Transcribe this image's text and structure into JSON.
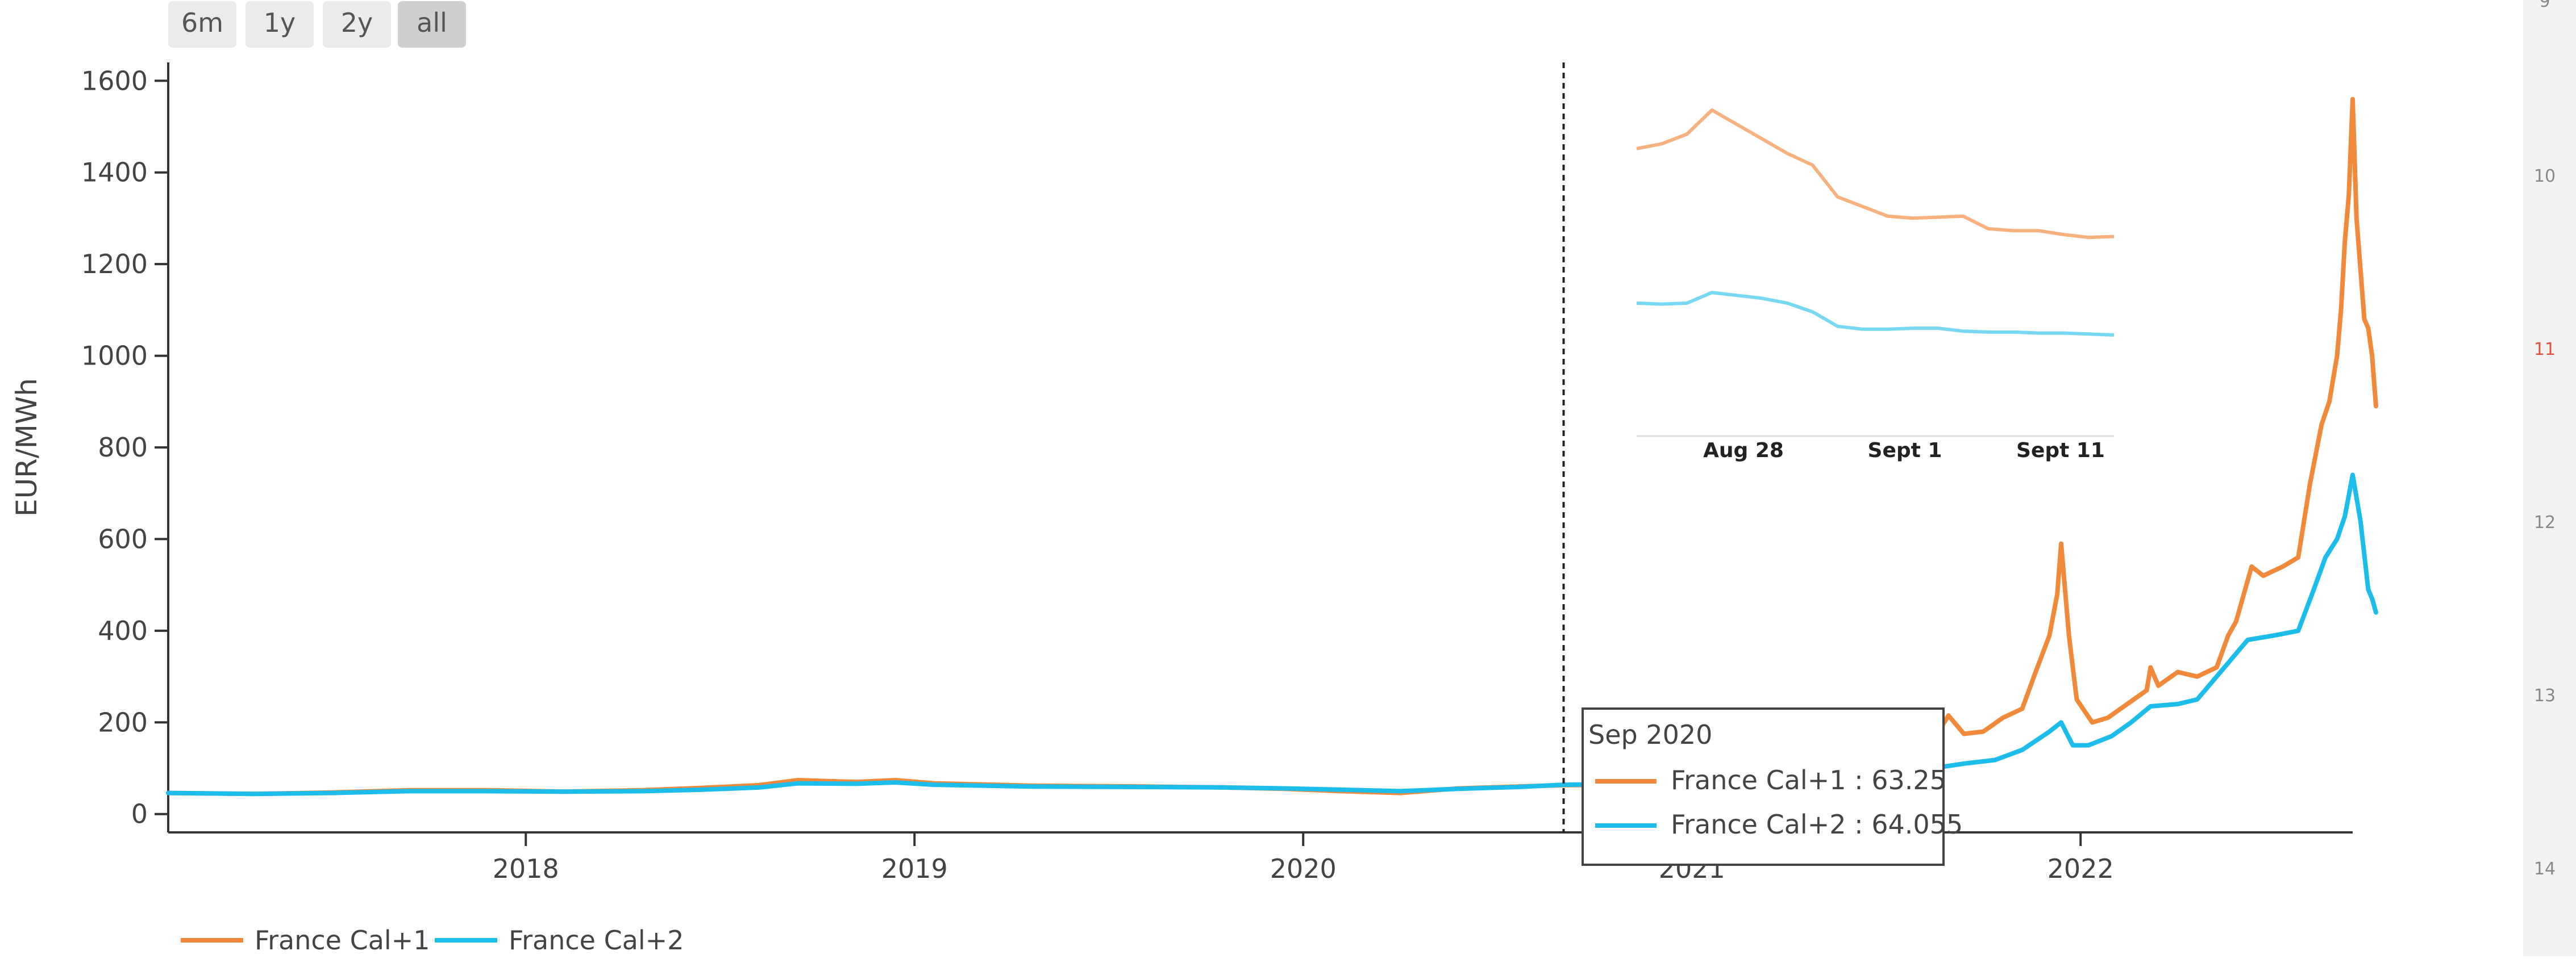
{
  "range_selector": {
    "buttons": [
      "6m",
      "1y",
      "2y",
      "all"
    ],
    "active": "all"
  },
  "colors": {
    "cal1": "#F08A3A",
    "cal2": "#1DBDEB",
    "cal1_inset": "#F7B17F",
    "cal2_inset": "#78D8F2",
    "axis": "#333333",
    "tick_text": "#444444",
    "button_bg": "#EBEBEB",
    "button_active_bg": "#CFCFCF",
    "gutter_bg": "#F2F2F2",
    "gutter_number": "#888888",
    "gutter_number_red": "#E0503A"
  },
  "gutter_numbers": [
    "9",
    "10",
    "11",
    "12",
    "13",
    "14"
  ],
  "gutter_red_index": 2,
  "chart_data": {
    "type": "line",
    "xlabel": "",
    "ylabel": "EUR/MWh",
    "xlim": [
      2017.08,
      2022.7
    ],
    "ylim": [
      -40,
      1640
    ],
    "yticks": [
      0,
      200,
      400,
      600,
      800,
      1000,
      1200,
      1400,
      1600
    ],
    "xticks": [
      {
        "value": 2018,
        "label": "2018"
      },
      {
        "value": 2019,
        "label": "2019"
      },
      {
        "value": 2020,
        "label": "2020"
      },
      {
        "value": 2021,
        "label": "2021"
      },
      {
        "value": 2022,
        "label": "2022"
      }
    ],
    "grid": false,
    "legend_position": "bottom-left",
    "marker_line_x": 2020.67,
    "series": [
      {
        "name": "France Cal+1",
        "color": "#F08A3A",
        "points": [
          [
            2017.08,
            46
          ],
          [
            2017.3,
            44
          ],
          [
            2017.5,
            47
          ],
          [
            2017.7,
            52
          ],
          [
            2017.9,
            52
          ],
          [
            2018.1,
            49
          ],
          [
            2018.3,
            52
          ],
          [
            2018.45,
            57
          ],
          [
            2018.6,
            63
          ],
          [
            2018.7,
            74
          ],
          [
            2018.85,
            70
          ],
          [
            2018.95,
            74
          ],
          [
            2019.05,
            67
          ],
          [
            2019.3,
            62
          ],
          [
            2019.6,
            60
          ],
          [
            2019.8,
            58
          ],
          [
            2019.95,
            55
          ],
          [
            2020.1,
            50
          ],
          [
            2020.25,
            46
          ],
          [
            2020.4,
            56
          ],
          [
            2020.55,
            60
          ],
          [
            2020.67,
            63
          ],
          [
            2020.9,
            65
          ],
          [
            2021.1,
            70
          ],
          [
            2021.3,
            80
          ],
          [
            2021.45,
            92
          ],
          [
            2021.55,
            115
          ],
          [
            2021.62,
            160
          ],
          [
            2021.66,
            215
          ],
          [
            2021.7,
            175
          ],
          [
            2021.75,
            180
          ],
          [
            2021.8,
            210
          ],
          [
            2021.85,
            230
          ],
          [
            2021.88,
            300
          ],
          [
            2021.92,
            390
          ],
          [
            2021.94,
            480
          ],
          [
            2021.95,
            590
          ],
          [
            2021.97,
            390
          ],
          [
            2021.99,
            250
          ],
          [
            2022.03,
            200
          ],
          [
            2022.07,
            210
          ],
          [
            2022.12,
            240
          ],
          [
            2022.17,
            270
          ],
          [
            2022.18,
            320
          ],
          [
            2022.2,
            280
          ],
          [
            2022.25,
            310
          ],
          [
            2022.3,
            300
          ],
          [
            2022.35,
            320
          ],
          [
            2022.38,
            390
          ],
          [
            2022.4,
            420
          ],
          [
            2022.42,
            480
          ],
          [
            2022.44,
            540
          ],
          [
            2022.47,
            520
          ],
          [
            2022.52,
            540
          ],
          [
            2022.56,
            560
          ],
          [
            2022.59,
            720
          ],
          [
            2022.62,
            850
          ],
          [
            2022.64,
            900
          ],
          [
            2022.66,
            1000
          ],
          [
            2022.67,
            1100
          ],
          [
            2022.68,
            1250
          ],
          [
            2022.69,
            1350
          ],
          [
            2022.7,
            1560
          ],
          [
            2022.71,
            1300
          ],
          [
            2022.73,
            1080
          ],
          [
            2022.74,
            1060
          ],
          [
            2022.75,
            1000
          ],
          [
            2022.76,
            890
          ]
        ]
      },
      {
        "name": "France Cal+2",
        "color": "#1DBDEB",
        "points": [
          [
            2017.08,
            46
          ],
          [
            2017.3,
            44
          ],
          [
            2017.5,
            46
          ],
          [
            2017.7,
            50
          ],
          [
            2017.9,
            50
          ],
          [
            2018.1,
            49
          ],
          [
            2018.3,
            50
          ],
          [
            2018.45,
            53
          ],
          [
            2018.6,
            58
          ],
          [
            2018.7,
            67
          ],
          [
            2018.85,
            66
          ],
          [
            2018.95,
            69
          ],
          [
            2019.05,
            64
          ],
          [
            2019.3,
            60
          ],
          [
            2019.6,
            59
          ],
          [
            2019.8,
            58
          ],
          [
            2019.95,
            56
          ],
          [
            2020.1,
            53
          ],
          [
            2020.25,
            50
          ],
          [
            2020.4,
            55
          ],
          [
            2020.55,
            59
          ],
          [
            2020.67,
            64
          ],
          [
            2020.9,
            66
          ],
          [
            2021.1,
            70
          ],
          [
            2021.3,
            78
          ],
          [
            2021.5,
            88
          ],
          [
            2021.62,
            100
          ],
          [
            2021.7,
            110
          ],
          [
            2021.78,
            118
          ],
          [
            2021.85,
            140
          ],
          [
            2021.92,
            180
          ],
          [
            2021.95,
            200
          ],
          [
            2021.98,
            150
          ],
          [
            2022.02,
            150
          ],
          [
            2022.08,
            170
          ],
          [
            2022.13,
            200
          ],
          [
            2022.18,
            235
          ],
          [
            2022.25,
            240
          ],
          [
            2022.3,
            250
          ],
          [
            2022.34,
            290
          ],
          [
            2022.38,
            330
          ],
          [
            2022.43,
            380
          ],
          [
            2022.5,
            390
          ],
          [
            2022.56,
            400
          ],
          [
            2022.6,
            490
          ],
          [
            2022.63,
            560
          ],
          [
            2022.66,
            600
          ],
          [
            2022.68,
            650
          ],
          [
            2022.7,
            740
          ],
          [
            2022.72,
            640
          ],
          [
            2022.74,
            490
          ],
          [
            2022.75,
            470
          ],
          [
            2022.76,
            440
          ]
        ]
      }
    ],
    "tooltip": {
      "title": "Sep 2020",
      "rows": [
        {
          "label": "France Cal+1 : 63.25",
          "color": "#F08A3A"
        },
        {
          "label": "France Cal+2 : 64.055",
          "color": "#1DBDEB"
        }
      ]
    },
    "inset": {
      "type": "line",
      "x_tick_labels": [
        "Aug 28",
        "Sept 1",
        "Sept 11"
      ],
      "series": [
        {
          "color": "#F7B17F",
          "values": [
            1165,
            1170,
            1180,
            1205,
            1190,
            1175,
            1160,
            1148,
            1115,
            1105,
            1095,
            1093,
            1094,
            1095,
            1082,
            1080,
            1080,
            1076,
            1073,
            1074
          ]
        },
        {
          "color": "#78D8F2",
          "values": [
            1052,
            1051,
            1052,
            1063,
            1060,
            1057,
            1052,
            1043,
            1028,
            1025,
            1025,
            1026,
            1026,
            1023,
            1022,
            1022,
            1021,
            1021,
            1020,
            1019
          ]
        }
      ]
    }
  }
}
